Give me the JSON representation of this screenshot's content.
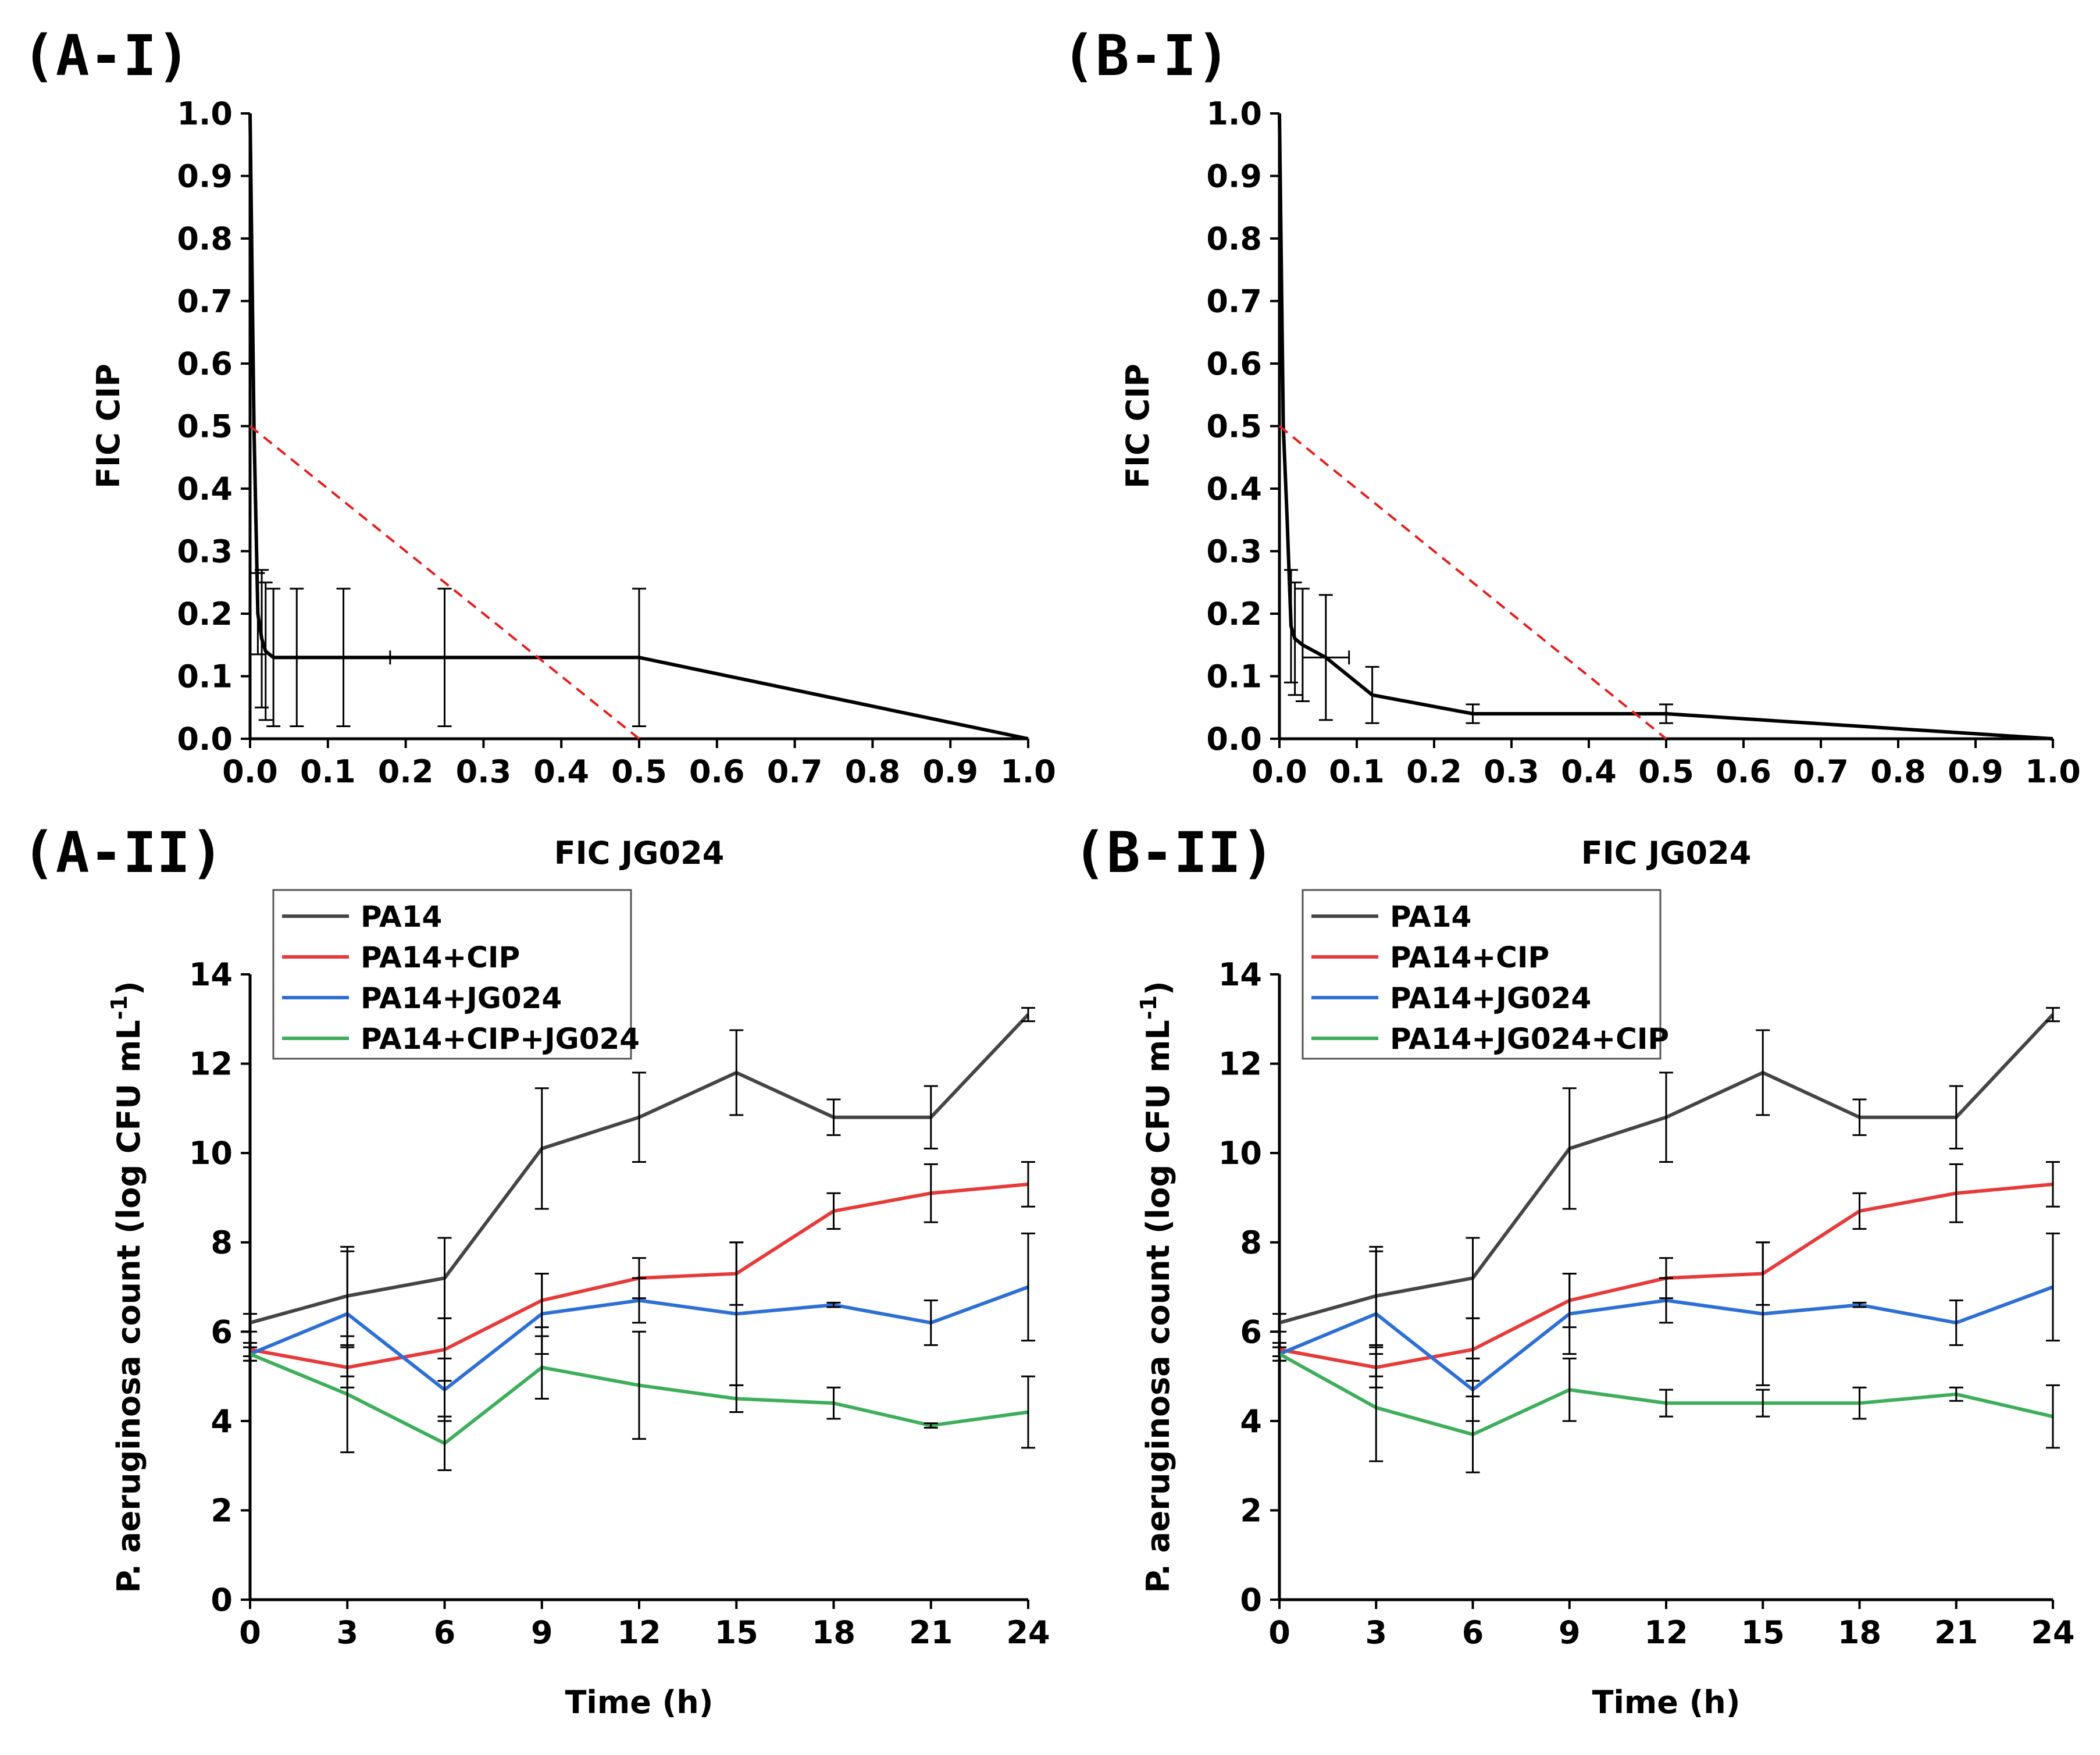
{
  "figure": {
    "panel_labels": [
      "(A-I)",
      "(B-I)",
      "(A-II)",
      "(B-II)"
    ]
  },
  "colors": {
    "pa14": "#454545",
    "cip": "#e53b3b",
    "jg024": "#2e6fd4",
    "combo": "#3fae5c",
    "isobole": "#000000",
    "additivity": "#e02020",
    "errorbar": "#000000"
  },
  "chart_data": [
    {
      "id": "A-I",
      "type": "line",
      "title": "",
      "xlabel": "FIC JG024",
      "ylabel": "FIC CIP",
      "xlim": [
        0,
        1
      ],
      "ylim": [
        0,
        1
      ],
      "xticks": [
        "0.0",
        "0.1",
        "0.2",
        "0.3",
        "0.4",
        "0.5",
        "0.6",
        "0.7",
        "0.8",
        "0.9",
        "1.0"
      ],
      "yticks": [
        "0.0",
        "0.1",
        "0.2",
        "0.3",
        "0.4",
        "0.5",
        "0.6",
        "0.7",
        "0.8",
        "0.9",
        "1.0"
      ],
      "series": [
        {
          "name": "isobologram",
          "color_key": "isobole",
          "x": [
            0,
            0.005,
            0.01,
            0.015,
            0.02,
            0.03,
            0.06,
            0.12,
            0.25,
            0.5,
            1.0
          ],
          "y": [
            1.0,
            0.5,
            0.2,
            0.16,
            0.14,
            0.13,
            0.13,
            0.13,
            0.13,
            0.13,
            0.0
          ],
          "yerr": [
            0,
            0,
            0.065,
            0.11,
            0.11,
            0.11,
            0.11,
            0.11,
            0.11,
            0.11,
            0
          ],
          "xerr": [
            0,
            0,
            0,
            0,
            0,
            0,
            0,
            0.06,
            0,
            0,
            0
          ]
        },
        {
          "name": "additivity line",
          "color_key": "additivity",
          "dashed": true,
          "x": [
            0,
            0.5
          ],
          "y": [
            0.5,
            0
          ]
        }
      ]
    },
    {
      "id": "B-I",
      "type": "line",
      "title": "",
      "xlabel": "FIC JG024",
      "ylabel": "FIC CIP",
      "xlim": [
        0,
        1
      ],
      "ylim": [
        0,
        1
      ],
      "xticks": [
        "0.0",
        "0.1",
        "0.2",
        "0.3",
        "0.4",
        "0.5",
        "0.6",
        "0.7",
        "0.8",
        "0.9",
        "1.0"
      ],
      "yticks": [
        "0.0",
        "0.1",
        "0.2",
        "0.3",
        "0.4",
        "0.5",
        "0.6",
        "0.7",
        "0.8",
        "0.9",
        "1.0"
      ],
      "series": [
        {
          "name": "isobologram",
          "color_key": "isobole",
          "x": [
            0,
            0.005,
            0.01,
            0.015,
            0.02,
            0.03,
            0.06,
            0.12,
            0.25,
            0.5,
            1.0
          ],
          "y": [
            1.0,
            0.5,
            0.35,
            0.18,
            0.16,
            0.15,
            0.13,
            0.07,
            0.04,
            0.04,
            0.0
          ],
          "yerr": [
            0,
            0,
            0,
            0.09,
            0.09,
            0.09,
            0.1,
            0.045,
            0.015,
            0.015,
            0
          ],
          "xerr": [
            0,
            0,
            0,
            0,
            0,
            0,
            0.03,
            0,
            0,
            0,
            0
          ]
        },
        {
          "name": "additivity line",
          "color_key": "additivity",
          "dashed": true,
          "x": [
            0,
            0.5
          ],
          "y": [
            0.5,
            0
          ]
        }
      ]
    },
    {
      "id": "A-II",
      "type": "line",
      "title": "",
      "xlabel": "Time (h)",
      "ylabel": "P. aeruginosa count (log CFU mL",
      "ylabel_sup": "-1",
      "ylabel_tail": ")",
      "xlim": [
        0,
        24
      ],
      "ylim": [
        0,
        14
      ],
      "xticks": [
        "0",
        "3",
        "6",
        "9",
        "12",
        "15",
        "18",
        "21",
        "24"
      ],
      "yticks": [
        "0",
        "2",
        "4",
        "6",
        "8",
        "10",
        "12",
        "14"
      ],
      "x": [
        0,
        3,
        6,
        9,
        12,
        15,
        18,
        21,
        24
      ],
      "series": [
        {
          "name": "PA14",
          "color_key": "pa14",
          "values": [
            6.2,
            6.8,
            7.2,
            10.1,
            10.8,
            11.8,
            10.8,
            10.8,
            13.1
          ],
          "err": [
            0.2,
            1.1,
            0.9,
            1.35,
            1.0,
            0.95,
            0.4,
            0.7,
            0.15
          ]
        },
        {
          "name": "PA14+CIP",
          "color_key": "cip",
          "values": [
            5.6,
            5.2,
            5.6,
            6.7,
            7.2,
            7.3,
            8.7,
            9.1,
            9.3
          ],
          "err": [
            0.15,
            0.45,
            0.7,
            0.6,
            0.45,
            0.7,
            0.4,
            0.65,
            0.5
          ]
        },
        {
          "name": "PA14+JG024",
          "color_key": "jg024",
          "values": [
            5.5,
            6.4,
            4.7,
            6.4,
            6.7,
            6.4,
            6.6,
            6.2,
            7.0
          ],
          "err": [
            0.15,
            1.4,
            0.7,
            0.9,
            0.5,
            1.6,
            0.05,
            0.5,
            1.2
          ]
        },
        {
          "name": "PA14+CIP+JG024",
          "color_key": "combo",
          "values": [
            5.5,
            4.6,
            3.5,
            5.2,
            4.8,
            4.5,
            4.4,
            3.9,
            4.2
          ],
          "err": [
            0.15,
            1.3,
            0.6,
            0.7,
            1.2,
            0.3,
            0.35,
            0.05,
            0.8
          ]
        }
      ],
      "legend": [
        "PA14",
        "PA14+CIP",
        "PA14+JG024",
        "PA14+CIP+JG024"
      ],
      "legend_position": "top-left"
    },
    {
      "id": "B-II",
      "type": "line",
      "title": "",
      "xlabel": "Time (h)",
      "ylabel": "P. aeruginosa count (log CFU mL",
      "ylabel_sup": "-1",
      "ylabel_tail": ")",
      "xlim": [
        0,
        24
      ],
      "ylim": [
        0,
        14
      ],
      "xticks": [
        "0",
        "3",
        "6",
        "9",
        "12",
        "15",
        "18",
        "21",
        "24"
      ],
      "yticks": [
        "0",
        "2",
        "4",
        "6",
        "8",
        "10",
        "12",
        "14"
      ],
      "x": [
        0,
        3,
        6,
        9,
        12,
        15,
        18,
        21,
        24
      ],
      "series": [
        {
          "name": "PA14",
          "color_key": "pa14",
          "values": [
            6.2,
            6.8,
            7.2,
            10.1,
            10.8,
            11.8,
            10.8,
            10.8,
            13.1
          ],
          "err": [
            0.2,
            1.1,
            0.9,
            1.35,
            1.0,
            0.95,
            0.4,
            0.7,
            0.15
          ]
        },
        {
          "name": "PA14+CIP",
          "color_key": "cip",
          "values": [
            5.6,
            5.2,
            5.6,
            6.7,
            7.2,
            7.3,
            8.7,
            9.1,
            9.3
          ],
          "err": [
            0.15,
            0.45,
            0.7,
            0.6,
            0.45,
            0.7,
            0.4,
            0.65,
            0.5
          ]
        },
        {
          "name": "PA14+JG024",
          "color_key": "jg024",
          "values": [
            5.5,
            6.4,
            4.7,
            6.4,
            6.7,
            6.4,
            6.6,
            6.2,
            7.0
          ],
          "err": [
            0.15,
            1.4,
            0.7,
            0.9,
            0.5,
            1.6,
            0.05,
            0.5,
            1.2
          ]
        },
        {
          "name": "PA14+JG024+CIP",
          "color_key": "combo",
          "values": [
            5.5,
            4.3,
            3.7,
            4.7,
            4.4,
            4.4,
            4.4,
            4.6,
            4.1
          ],
          "err": [
            0.15,
            1.2,
            0.85,
            0.7,
            0.3,
            0.3,
            0.35,
            0.15,
            0.7
          ]
        }
      ],
      "legend": [
        "PA14",
        "PA14+CIP",
        "PA14+JG024",
        "PA14+JG024+CIP"
      ],
      "legend_position": "top-left"
    }
  ]
}
